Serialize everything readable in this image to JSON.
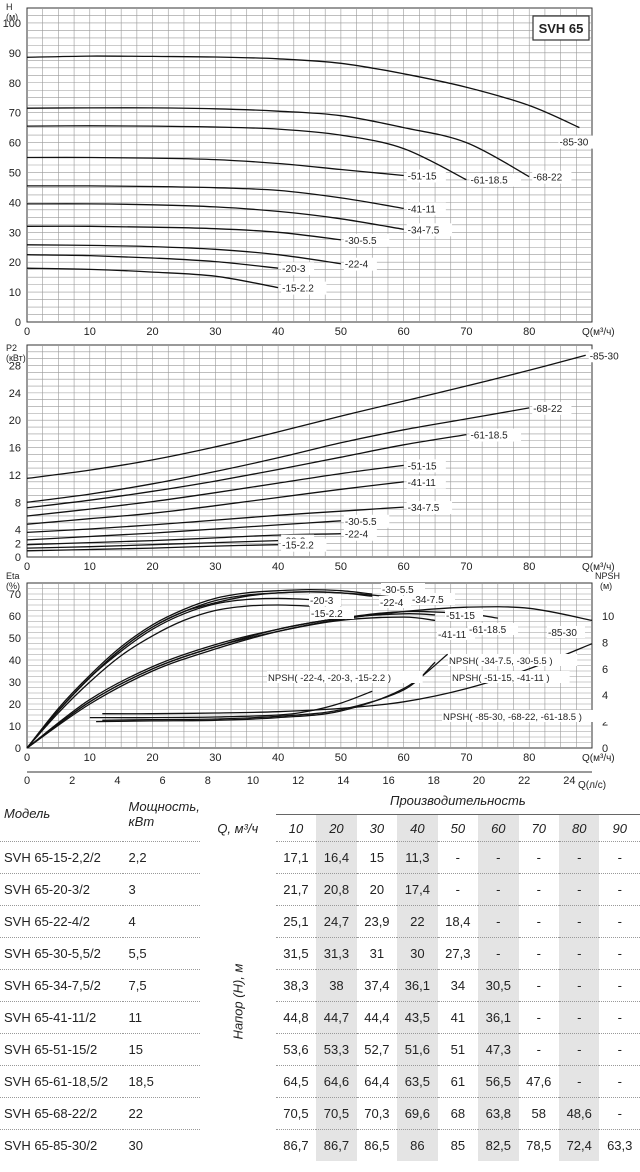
{
  "chart_data": [
    {
      "type": "line",
      "title": "SVH 65",
      "ylabel": "H\n(м)",
      "xlabel": "Q(м³/ч)",
      "xlim": [
        0,
        90
      ],
      "ylim": [
        0,
        105
      ],
      "xticks": [
        0,
        10,
        20,
        30,
        40,
        50,
        60,
        70,
        80
      ],
      "yticks": [
        0,
        10,
        20,
        30,
        40,
        50,
        60,
        70,
        80,
        90,
        100
      ],
      "grid": true,
      "series": [
        {
          "name": "-85-30",
          "x": [
            0,
            10,
            20,
            30,
            40,
            50,
            60,
            70,
            80,
            88
          ],
          "y": [
            88.5,
            88.9,
            88.8,
            88.6,
            88,
            86.5,
            83,
            78.5,
            72.4,
            65
          ]
        },
        {
          "name": "-68-22",
          "x": [
            0,
            10,
            20,
            30,
            40,
            50,
            60,
            70,
            80
          ],
          "y": [
            71.5,
            71.6,
            71.6,
            71.3,
            70.5,
            69,
            65,
            60,
            48.6
          ]
        },
        {
          "name": "-61-18.5",
          "x": [
            0,
            10,
            20,
            30,
            40,
            50,
            60,
            70
          ],
          "y": [
            65.5,
            65.6,
            65.5,
            65.2,
            64.5,
            62.5,
            58,
            47.6
          ]
        },
        {
          "name": "-51-15",
          "x": [
            0,
            10,
            20,
            30,
            40,
            50,
            60
          ],
          "y": [
            55,
            55,
            54.8,
            54.3,
            53,
            51,
            49
          ]
        },
        {
          "name": "-41-11",
          "x": [
            0,
            10,
            20,
            30,
            40,
            50,
            60
          ],
          "y": [
            45.5,
            45.5,
            45.3,
            44.9,
            44,
            41.5,
            38
          ]
        },
        {
          "name": "-34-7.5",
          "x": [
            0,
            10,
            20,
            30,
            40,
            50,
            60
          ],
          "y": [
            39.5,
            39.5,
            39.2,
            38.5,
            37,
            34.5,
            31
          ]
        },
        {
          "name": "-30-5.5",
          "x": [
            0,
            10,
            20,
            30,
            40,
            50
          ],
          "y": [
            32,
            32,
            31.7,
            31.2,
            30,
            27.5
          ]
        },
        {
          "name": "-22-4",
          "x": [
            0,
            10,
            20,
            30,
            40,
            50
          ],
          "y": [
            25.8,
            25.6,
            25.2,
            24.3,
            22.5,
            19.5
          ]
        },
        {
          "name": "-20-3",
          "x": [
            0,
            10,
            20,
            30,
            40
          ],
          "y": [
            22.5,
            22.2,
            21.4,
            20.2,
            18
          ]
        },
        {
          "name": "-15-2.2",
          "x": [
            0,
            10,
            20,
            30,
            40
          ],
          "y": [
            18,
            17.6,
            16.7,
            15.3,
            11.5
          ]
        }
      ]
    },
    {
      "type": "line",
      "ylabel": "P2\n(кВт)",
      "xlabel": "Q(м³/ч)",
      "xlim": [
        0,
        90
      ],
      "ylim": [
        0,
        31
      ],
      "xticks": [
        0,
        10,
        20,
        30,
        40,
        50,
        60,
        70,
        80
      ],
      "yticks": [
        0,
        2,
        4,
        8,
        12,
        16,
        20,
        24,
        28
      ],
      "grid": true,
      "series": [
        {
          "name": "-85-30",
          "x": [
            0,
            10,
            20,
            30,
            40,
            50,
            60,
            70,
            80,
            89
          ],
          "y": [
            11.5,
            12.7,
            14.2,
            16.1,
            18.3,
            20.6,
            22.8,
            25,
            27.3,
            29.5
          ]
        },
        {
          "name": "-68-22",
          "x": [
            0,
            10,
            20,
            30,
            40,
            50,
            60,
            70,
            80
          ],
          "y": [
            8,
            9.2,
            10.7,
            12.5,
            14.5,
            16.7,
            18.6,
            20.2,
            21.8
          ]
        },
        {
          "name": "-61-18.5",
          "x": [
            0,
            10,
            20,
            30,
            40,
            50,
            60,
            70
          ],
          "y": [
            7.2,
            8.3,
            9.6,
            11.1,
            12.8,
            14.6,
            16.4,
            17.9
          ]
        },
        {
          "name": "-51-15",
          "x": [
            0,
            10,
            20,
            30,
            40,
            50,
            60
          ],
          "y": [
            6,
            7,
            8.1,
            9.4,
            10.8,
            12.2,
            13.4
          ]
        },
        {
          "name": "-41-11",
          "x": [
            0,
            10,
            20,
            30,
            40,
            50,
            60
          ],
          "y": [
            4.8,
            5.6,
            6.4,
            7.5,
            8.7,
            9.9,
            11
          ]
        },
        {
          "name": "-34-7.5",
          "x": [
            0,
            10,
            20,
            30,
            40,
            50,
            60
          ],
          "y": [
            3.6,
            4.1,
            4.7,
            5.4,
            6.1,
            6.7,
            7.3
          ]
        },
        {
          "name": "-30-5.5",
          "x": [
            0,
            10,
            20,
            30,
            40,
            50
          ],
          "y": [
            2.5,
            3,
            3.5,
            4.1,
            4.7,
            5.3
          ]
        },
        {
          "name": "-22-4",
          "x": [
            0,
            10,
            20,
            30,
            40,
            50
          ],
          "y": [
            1.8,
            2.1,
            2.4,
            2.8,
            3.2,
            3.4
          ]
        },
        {
          "name": "-20-3",
          "x": [
            0,
            10,
            20,
            30,
            40
          ],
          "y": [
            1.3,
            1.5,
            1.8,
            2.1,
            2.4
          ]
        },
        {
          "name": "-15-2.2",
          "x": [
            0,
            10,
            20,
            30,
            40
          ],
          "y": [
            0.9,
            1.1,
            1.3,
            1.6,
            1.8
          ]
        }
      ]
    },
    {
      "type": "line",
      "ylabel": "Eta\n(%)",
      "y2label": "NPSH\n(м)",
      "xlabel": "Q(м³/ч)",
      "x2label": "Q(л/с)",
      "xlim": [
        0,
        90
      ],
      "ylim": [
        0,
        75
      ],
      "y2lim": [
        0,
        12.5
      ],
      "xticks": [
        0,
        10,
        20,
        30,
        40,
        50,
        60,
        70,
        80
      ],
      "x2ticks": [
        0,
        2,
        4,
        6,
        8,
        10,
        12,
        14,
        16,
        18,
        20,
        22,
        24
      ],
      "yticks": [
        0,
        10,
        20,
        30,
        40,
        50,
        60,
        70
      ],
      "y2ticks": [
        0,
        2,
        4,
        6,
        8,
        10
      ],
      "grid": true,
      "series": [
        {
          "name": "-30-5.5",
          "x": [
            0,
            5,
            10,
            15,
            20,
            25,
            30,
            35,
            40,
            45,
            50,
            55
          ],
          "y": [
            0,
            18,
            33,
            46,
            56,
            63,
            68,
            70.5,
            71.5,
            72,
            71.5,
            70
          ]
        },
        {
          "name": "-22-4",
          "x": [
            0,
            5,
            10,
            15,
            20,
            25,
            30,
            35,
            40,
            45,
            50,
            55
          ],
          "y": [
            0,
            17,
            32,
            45,
            55,
            62,
            67,
            69.5,
            70.5,
            71,
            70.5,
            69
          ]
        },
        {
          "name": "-34-7.5",
          "x": [
            0,
            5,
            10,
            15,
            20,
            25,
            30,
            35,
            40,
            45,
            50,
            55,
            60
          ],
          "y": [
            0,
            17,
            32,
            45,
            55,
            62,
            66,
            69,
            70.5,
            71,
            70.5,
            69.5,
            68
          ]
        },
        {
          "name": "-20-3",
          "x": [
            0,
            5,
            10,
            15,
            20,
            25,
            30,
            35,
            40,
            45
          ],
          "y": [
            0,
            17,
            32,
            44,
            54,
            61,
            65.5,
            67.5,
            68,
            67.5
          ]
        },
        {
          "name": "-15-2.2",
          "x": [
            0,
            5,
            10,
            15,
            20,
            25,
            30,
            35,
            40,
            45
          ],
          "y": [
            0,
            16,
            30,
            42,
            51,
            58,
            62.5,
            64.5,
            65,
            64.5
          ]
        },
        {
          "name": "-51-15",
          "x": [
            0,
            10,
            20,
            30,
            40,
            50,
            60,
            65
          ],
          "y": [
            0,
            22,
            37,
            47,
            54,
            59,
            61,
            60.5
          ]
        },
        {
          "name": "-41-11",
          "x": [
            0,
            10,
            20,
            30,
            40,
            50,
            60,
            65
          ],
          "y": [
            0,
            21,
            36,
            46,
            53,
            58,
            59.5,
            58
          ]
        },
        {
          "name": "-61-18.5",
          "x": [
            0,
            10,
            20,
            30,
            40,
            50,
            60,
            70,
            75
          ],
          "y": [
            0,
            21,
            36,
            46,
            54,
            59,
            62,
            61,
            59
          ]
        },
        {
          "name": "-85-30",
          "x": [
            0,
            10,
            20,
            30,
            40,
            50,
            60,
            70,
            80,
            90
          ],
          "y": [
            0,
            20,
            35,
            45,
            53,
            58.5,
            62,
            64,
            63.5,
            58
          ]
        }
      ],
      "npsh_series": [
        {
          "name": "NPSH( -22-4, -20-3, -15-2.2 )",
          "x": [
            10,
            20,
            30,
            40,
            45,
            50,
            55
          ],
          "y": [
            2.3,
            2.3,
            2.35,
            2.5,
            2.8,
            3.4,
            4.3
          ]
        },
        {
          "name": "NPSH( -34-7.5, -30-5.5 )",
          "x": [
            12,
            20,
            30,
            40,
            50,
            60,
            65
          ],
          "y": [
            2.1,
            2.15,
            2.2,
            2.4,
            2.9,
            4.4,
            6.5
          ]
        },
        {
          "name": "NPSH( -51-15, -41-11 )",
          "x": [
            11,
            20,
            30,
            40,
            50,
            60,
            67
          ],
          "y": [
            2,
            2.05,
            2.1,
            2.3,
            2.8,
            4.5,
            7.1
          ]
        },
        {
          "name": "NPSH( -85-30, -68-22, -61-18.5 )",
          "x": [
            12,
            20,
            30,
            40,
            50,
            60,
            70,
            80,
            90
          ],
          "y": [
            2.6,
            2.6,
            2.65,
            2.75,
            3,
            3.5,
            4.5,
            6,
            7.9
          ]
        }
      ]
    }
  ],
  "table": {
    "model_header": "Модель",
    "power_header": "Мощность, кВт",
    "prod_header": "Производительность",
    "q_header": "Q, м³/ч",
    "head_label": "Напор (H), м",
    "q_values": [
      "10",
      "20",
      "30",
      "40",
      "50",
      "60",
      "70",
      "80",
      "90"
    ],
    "rows": [
      {
        "model": "SVH 65-15-2,2/2",
        "power": "2,2",
        "values": [
          "17,1",
          "16,4",
          "15",
          "11,3",
          "-",
          "-",
          "-",
          "-",
          "-"
        ]
      },
      {
        "model": "SVH 65-20-3/2",
        "power": "3",
        "values": [
          "21,7",
          "20,8",
          "20",
          "17,4",
          "-",
          "-",
          "-",
          "-",
          "-"
        ]
      },
      {
        "model": "SVH 65-22-4/2",
        "power": "4",
        "values": [
          "25,1",
          "24,7",
          "23,9",
          "22",
          "18,4",
          "-",
          "-",
          "-",
          "-"
        ]
      },
      {
        "model": "SVH 65-30-5,5/2",
        "power": "5,5",
        "values": [
          "31,5",
          "31,3",
          "31",
          "30",
          "27,3",
          "-",
          "-",
          "-",
          "-"
        ]
      },
      {
        "model": "SVH 65-34-7,5/2",
        "power": "7,5",
        "values": [
          "38,3",
          "38",
          "37,4",
          "36,1",
          "34",
          "30,5",
          "-",
          "-",
          "-"
        ]
      },
      {
        "model": "SVH 65-41-11/2",
        "power": "11",
        "values": [
          "44,8",
          "44,7",
          "44,4",
          "43,5",
          "41",
          "36,1",
          "-",
          "-",
          "-"
        ]
      },
      {
        "model": "SVH 65-51-15/2",
        "power": "15",
        "values": [
          "53,6",
          "53,3",
          "52,7",
          "51,6",
          "51",
          "47,3",
          "-",
          "-",
          "-"
        ]
      },
      {
        "model": "SVH 65-61-18,5/2",
        "power": "18,5",
        "values": [
          "64,5",
          "64,6",
          "64,4",
          "63,5",
          "61",
          "56,5",
          "47,6",
          "-",
          "-"
        ]
      },
      {
        "model": "SVH 65-68-22/2",
        "power": "22",
        "values": [
          "70,5",
          "70,5",
          "70,3",
          "69,6",
          "68",
          "63,8",
          "58",
          "48,6",
          "-"
        ]
      },
      {
        "model": "SVH 65-85-30/2",
        "power": "30",
        "values": [
          "86,7",
          "86,7",
          "86,5",
          "86",
          "85",
          "82,5",
          "78,5",
          "72,4",
          "63,3"
        ]
      }
    ]
  }
}
